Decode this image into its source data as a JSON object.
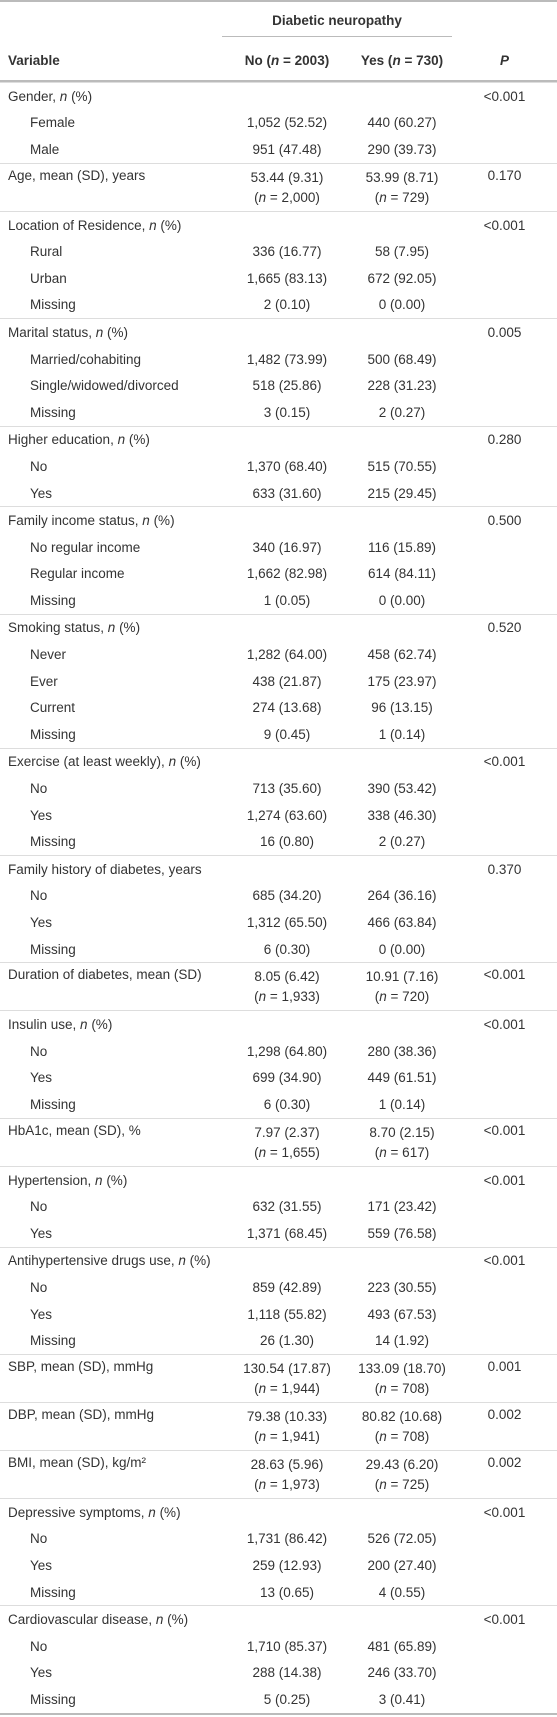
{
  "header": {
    "group": "Diabetic neuropathy",
    "columns": [
      "Variable",
      "No (n = 2003)",
      "Yes (n = 730)",
      "P"
    ]
  },
  "groups": [
    {
      "label": "Gender, n (%)",
      "p": "<0.001",
      "items": [
        {
          "label": "Female",
          "no": "1,052 (52.52)",
          "yes": "440 (60.27)"
        },
        {
          "label": "Male",
          "no": "951 (47.48)",
          "yes": "290 (39.73)"
        }
      ]
    },
    {
      "label": "Age, mean (SD), years",
      "no": "53.44 (9.31)",
      "no_n": "(n = 2,000)",
      "yes": "53.99 (8.71)",
      "yes_n": "(n = 729)",
      "p": "0.170"
    },
    {
      "label": "Location of Residence, n (%)",
      "p": "<0.001",
      "items": [
        {
          "label": "Rural",
          "no": "336 (16.77)",
          "yes": "58 (7.95)"
        },
        {
          "label": "Urban",
          "no": "1,665 (83.13)",
          "yes": "672 (92.05)"
        },
        {
          "label": "Missing",
          "no": "2 (0.10)",
          "yes": "0 (0.00)"
        }
      ]
    },
    {
      "label": "Marital status, n (%)",
      "p": "0.005",
      "items": [
        {
          "label": "Married/cohabiting",
          "no": "1,482 (73.99)",
          "yes": "500 (68.49)"
        },
        {
          "label": "Single/widowed/divorced",
          "no": "518 (25.86)",
          "yes": "228 (31.23)"
        },
        {
          "label": "Missing",
          "no": "3 (0.15)",
          "yes": "2 (0.27)"
        }
      ]
    },
    {
      "label": "Higher education, n (%)",
      "p": "0.280",
      "items": [
        {
          "label": "No",
          "no": "1,370 (68.40)",
          "yes": "515 (70.55)"
        },
        {
          "label": "Yes",
          "no": "633 (31.60)",
          "yes": "215 (29.45)"
        }
      ]
    },
    {
      "label": "Family income status, n (%)",
      "p": "0.500",
      "items": [
        {
          "label": "No regular income",
          "no": "340 (16.97)",
          "yes": "116 (15.89)"
        },
        {
          "label": "Regular income",
          "no": "1,662 (82.98)",
          "yes": "614 (84.11)"
        },
        {
          "label": "Missing",
          "no": "1 (0.05)",
          "yes": "0 (0.00)"
        }
      ]
    },
    {
      "label": "Smoking status, n (%)",
      "p": "0.520",
      "items": [
        {
          "label": "Never",
          "no": "1,282 (64.00)",
          "yes": "458 (62.74)"
        },
        {
          "label": "Ever",
          "no": "438 (21.87)",
          "yes": "175 (23.97)"
        },
        {
          "label": "Current",
          "no": "274 (13.68)",
          "yes": "96 (13.15)"
        },
        {
          "label": "Missing",
          "no": "9 (0.45)",
          "yes": "1 (0.14)"
        }
      ]
    },
    {
      "label": "Exercise (at least weekly), n (%)",
      "p": "<0.001",
      "items": [
        {
          "label": "No",
          "no": "713 (35.60)",
          "yes": "390 (53.42)"
        },
        {
          "label": "Yes",
          "no": "1,274 (63.60)",
          "yes": "338 (46.30)"
        },
        {
          "label": "Missing",
          "no": "16 (0.80)",
          "yes": "2 (0.27)"
        }
      ]
    },
    {
      "label": "Family history of diabetes, years",
      "p": "0.370",
      "items": [
        {
          "label": "No",
          "no": "685 (34.20)",
          "yes": "264 (36.16)"
        },
        {
          "label": "Yes",
          "no": "1,312 (65.50)",
          "yes": "466 (63.84)"
        },
        {
          "label": "Missing",
          "no": "6 (0.30)",
          "yes": "0 (0.00)"
        }
      ]
    },
    {
      "label": "Duration of diabetes, mean (SD)",
      "no": "8.05 (6.42)",
      "no_n": "(n = 1,933)",
      "yes": "10.91 (7.16)",
      "yes_n": "(n = 720)",
      "p": "<0.001"
    },
    {
      "label": "Insulin use, n (%)",
      "p": "<0.001",
      "items": [
        {
          "label": "No",
          "no": "1,298 (64.80)",
          "yes": "280 (38.36)"
        },
        {
          "label": "Yes",
          "no": "699 (34.90)",
          "yes": "449 (61.51)"
        },
        {
          "label": "Missing",
          "no": "6 (0.30)",
          "yes": "1 (0.14)"
        }
      ]
    },
    {
      "label": "HbA1c, mean (SD), %",
      "no": "7.97 (2.37)",
      "no_n": "(n = 1,655)",
      "yes": "8.70 (2.15)",
      "yes_n": "(n = 617)",
      "p": "<0.001"
    },
    {
      "label": "Hypertension, n (%)",
      "p": "<0.001",
      "items": [
        {
          "label": "No",
          "no": "632 (31.55)",
          "yes": "171 (23.42)"
        },
        {
          "label": "Yes",
          "no": "1,371 (68.45)",
          "yes": "559 (76.58)"
        }
      ]
    },
    {
      "label": "Antihypertensive drugs use, n (%)",
      "p": "<0.001",
      "items": [
        {
          "label": "No",
          "no": "859 (42.89)",
          "yes": "223 (30.55)"
        },
        {
          "label": "Yes",
          "no": "1,118 (55.82)",
          "yes": "493 (67.53)"
        },
        {
          "label": "Missing",
          "no": "26 (1.30)",
          "yes": "14 (1.92)"
        }
      ]
    },
    {
      "label": "SBP, mean (SD), mmHg",
      "no": "130.54 (17.87)",
      "no_n": "(n = 1,944)",
      "yes": "133.09 (18.70)",
      "yes_n": "(n = 708)",
      "p": "0.001"
    },
    {
      "label": "DBP, mean (SD), mmHg",
      "no": "79.38 (10.33)",
      "no_n": "(n = 1,941)",
      "yes": "80.82 (10.68)",
      "yes_n": "(n = 708)",
      "p": "0.002"
    },
    {
      "label": "BMI, mean (SD), kg/m²",
      "no": "28.63 (5.96)",
      "no_n": "(n = 1,973)",
      "yes": "29.43 (6.20)",
      "yes_n": "(n = 725)",
      "p": "0.002"
    },
    {
      "label": "Depressive symptoms, n (%)",
      "p": "<0.001",
      "items": [
        {
          "label": "No",
          "no": "1,731 (86.42)",
          "yes": "526 (72.05)"
        },
        {
          "label": "Yes",
          "no": "259 (12.93)",
          "yes": "200 (27.40)"
        },
        {
          "label": "Missing",
          "no": "13 (0.65)",
          "yes": "4 (0.55)"
        }
      ]
    },
    {
      "label": "Cardiovascular disease, n (%)",
      "p": "<0.001",
      "items": [
        {
          "label": "No",
          "no": "1,710 (85.37)",
          "yes": "481 (65.89)"
        },
        {
          "label": "Yes",
          "no": "288 (14.38)",
          "yes": "246 (33.70)"
        },
        {
          "label": "Missing",
          "no": "5 (0.25)",
          "yes": "3 (0.41)"
        }
      ]
    }
  ]
}
